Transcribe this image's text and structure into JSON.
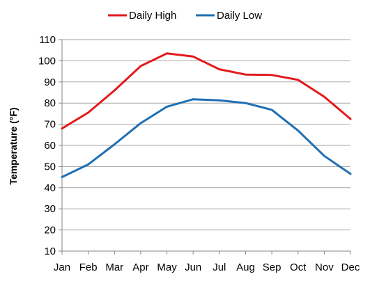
{
  "chart_data": {
    "type": "line",
    "categories": [
      "Jan",
      "Feb",
      "Mar",
      "Apr",
      "May",
      "Jun",
      "Jul",
      "Aug",
      "Sep",
      "Oct",
      "Nov",
      "Dec"
    ],
    "series": [
      {
        "name": "Daily High",
        "color": "#e31a1c",
        "values": [
          68,
          75.5,
          86,
          97.5,
          103.5,
          102,
          96,
          93.5,
          93.3,
          91,
          83,
          72.5
        ]
      },
      {
        "name": "Daily Low",
        "color": "#1f6fb2",
        "values": [
          45,
          51,
          60.5,
          70.5,
          78.3,
          81.8,
          81.3,
          80,
          76.8,
          67,
          55,
          46.5
        ]
      }
    ],
    "xlabel": "",
    "ylabel": "Temperature (°F)",
    "ylim": [
      10,
      110
    ],
    "yticks": [
      10,
      20,
      30,
      40,
      50,
      60,
      70,
      80,
      90,
      100,
      110
    ],
    "grid": true,
    "legend_position": "top-center"
  }
}
